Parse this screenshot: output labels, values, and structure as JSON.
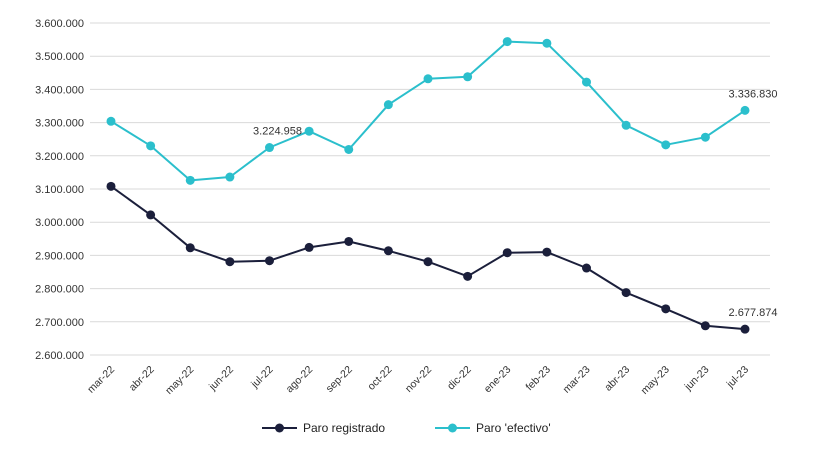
{
  "chart_data": {
    "type": "line",
    "categories": [
      "mar-22",
      "abr-22",
      "may-22",
      "jun-22",
      "jul-22",
      "ago-22",
      "sep-22",
      "oct-22",
      "nov-22",
      "dic-22",
      "ene-23",
      "feb-23",
      "mar-23",
      "abr-23",
      "may-23",
      "jun-23",
      "jul-23"
    ],
    "ylim": [
      2600000,
      3600000
    ],
    "yticks": [
      "3.600.000",
      "3.500.000",
      "3.400.000",
      "3.300.000",
      "3.200.000",
      "3.100.000",
      "3.000.000",
      "2.900.000",
      "2.800.000",
      "2.700.000",
      "2.600.000"
    ],
    "ytick_values": [
      3600000,
      3500000,
      3400000,
      3300000,
      3200000,
      3100000,
      3000000,
      2900000,
      2800000,
      2700000,
      2600000
    ],
    "grid": true,
    "legend_position": "bottom",
    "series": [
      {
        "name": "Paro registrado",
        "color": "#1b1f3b",
        "values": [
          3108000,
          3022000,
          2923000,
          2881000,
          2884000,
          2924000,
          2942000,
          2914000,
          2881000,
          2837000,
          2908000,
          2910000,
          2862000,
          2788000,
          2739000,
          2688000,
          2677874
        ]
      },
      {
        "name": "Paro 'efectivo'",
        "color": "#2bbfcc",
        "values": [
          3304000,
          3230000,
          3126000,
          3136000,
          3224958,
          3274000,
          3219000,
          3354000,
          3432000,
          3438000,
          3544000,
          3539000,
          3422000,
          3292000,
          3233000,
          3256000,
          3336830
        ]
      }
    ],
    "annotations": [
      {
        "series": 1,
        "index": 4,
        "text": "3.224.958"
      },
      {
        "series": 1,
        "index": 16,
        "text": "3.336.830"
      },
      {
        "series": 0,
        "index": 16,
        "text": "2.677.874"
      }
    ]
  }
}
